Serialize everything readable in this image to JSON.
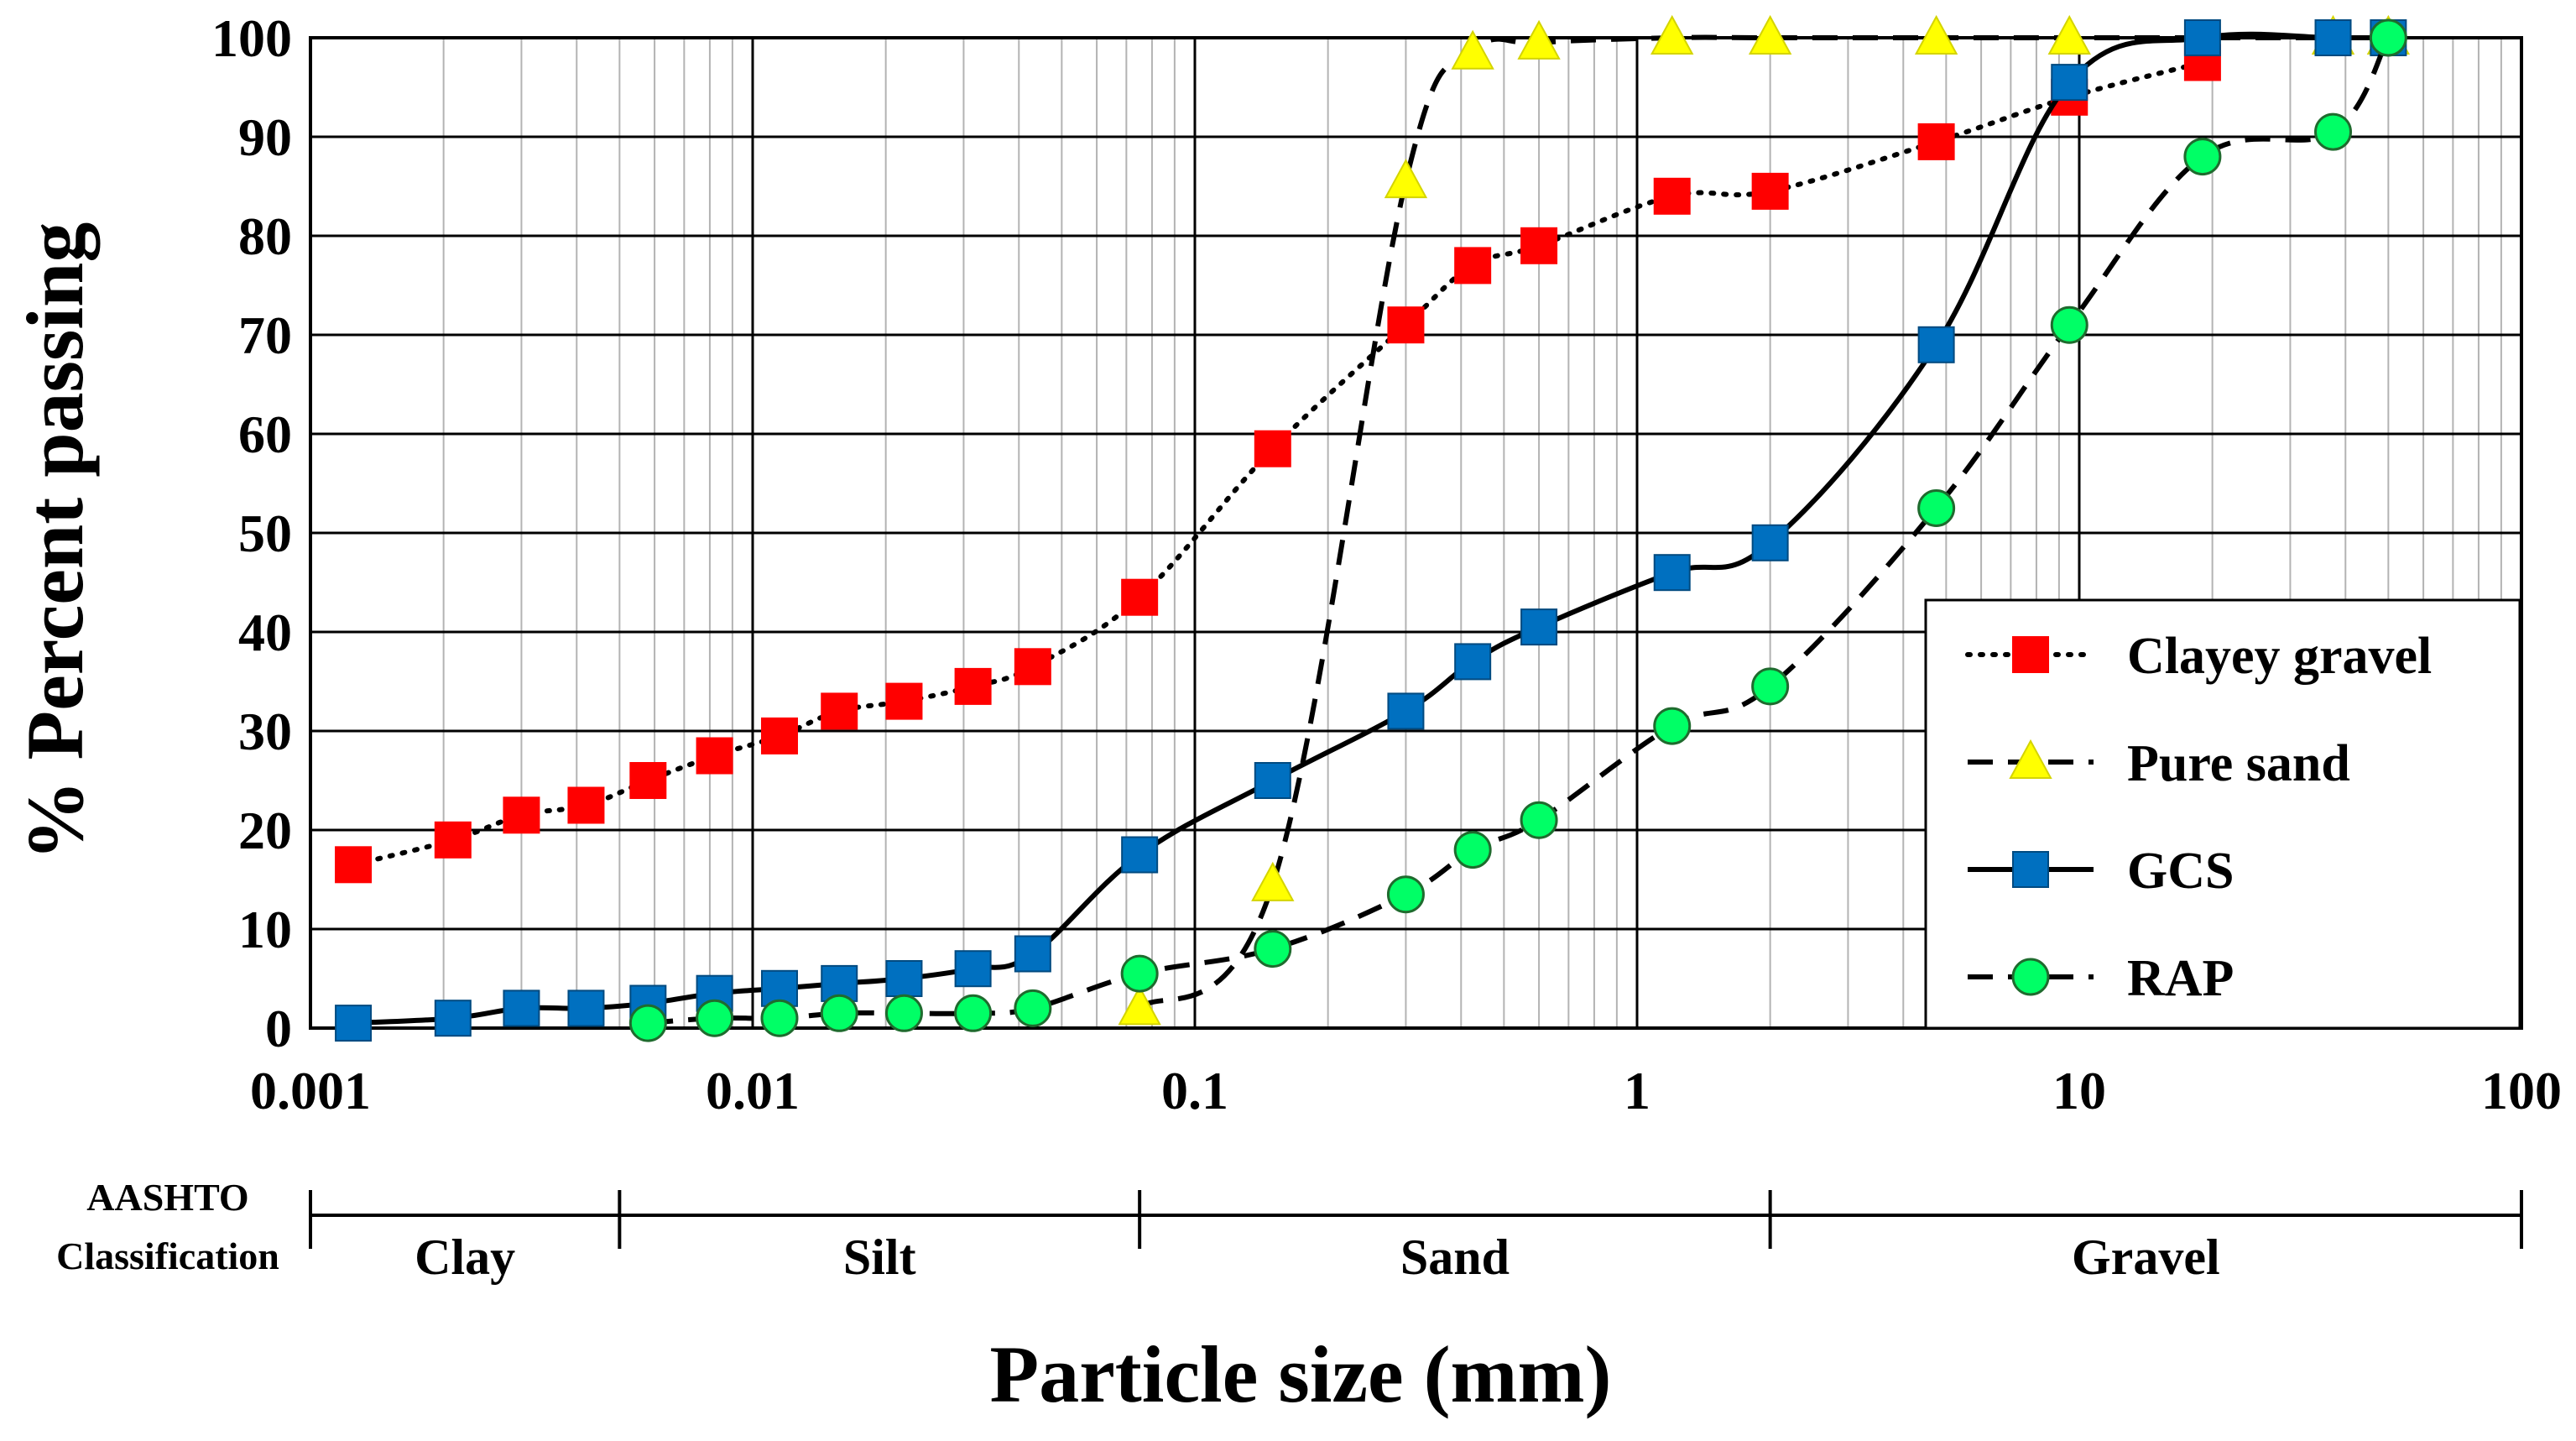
{
  "chart_data": {
    "type": "line",
    "xscale": "log",
    "xlim": [
      0.001,
      100
    ],
    "ylim": [
      0,
      100
    ],
    "xlabel": "Particle size (mm)",
    "ylabel": "% Percent passing",
    "x_tick_labels": [
      "0.001",
      "0.01",
      "0.1",
      "1",
      "10",
      "100"
    ],
    "y_tick_labels": [
      "0",
      "10",
      "20",
      "30",
      "40",
      "50",
      "60",
      "70",
      "80",
      "90",
      "100"
    ],
    "grid": true,
    "legend_position": "bottom-right",
    "series": [
      {
        "name": "Clayey gravel",
        "line_style": "dotted",
        "marker": "square",
        "color": "#ff0000",
        "x": [
          0.00125,
          0.0021,
          0.003,
          0.0042,
          0.0058,
          0.0082,
          0.0115,
          0.0157,
          0.022,
          0.0315,
          0.043,
          0.075,
          0.15,
          0.3,
          0.425,
          0.6,
          1.2,
          2.0,
          4.75,
          9.5,
          19.0
        ],
        "y": [
          16.5,
          19,
          21.5,
          22.5,
          25,
          27.5,
          29.5,
          32,
          33,
          34.5,
          36.5,
          43.5,
          58.5,
          71,
          77,
          79,
          84,
          84.5,
          89.5,
          94,
          97.5
        ]
      },
      {
        "name": "Pure sand",
        "line_style": "dashed",
        "marker": "triangle",
        "color": "#ffff00",
        "x": [
          0.075,
          0.15,
          0.3,
          0.425,
          0.6,
          1.2,
          2.0,
          4.75,
          9.5,
          37.5,
          50.0
        ],
        "y": [
          2,
          14.5,
          85.5,
          98.5,
          99.5,
          100,
          100,
          100,
          100,
          100,
          100
        ]
      },
      {
        "name": "GCS",
        "line_style": "solid",
        "marker": "square",
        "color": "#0070c0",
        "x": [
          0.00125,
          0.0021,
          0.003,
          0.0042,
          0.0058,
          0.0082,
          0.0115,
          0.0157,
          0.022,
          0.0315,
          0.043,
          0.075,
          0.15,
          0.3,
          0.425,
          0.6,
          1.2,
          2.0,
          4.75,
          9.5,
          19.0,
          37.5,
          50.0
        ],
        "y": [
          0.5,
          1,
          2,
          2,
          2.5,
          3.5,
          4,
          4.5,
          5,
          6,
          7.5,
          17.5,
          25,
          32,
          37,
          40.5,
          46,
          49,
          69,
          95.5,
          100,
          100,
          100
        ]
      },
      {
        "name": "RAP",
        "line_style": "dashed",
        "marker": "circle",
        "color": "#00ff66",
        "x": [
          0.0058,
          0.0082,
          0.0115,
          0.0157,
          0.022,
          0.0315,
          0.043,
          0.075,
          0.15,
          0.3,
          0.425,
          0.6,
          1.2,
          2.0,
          4.75,
          9.5,
          19.0,
          37.5,
          50.0
        ],
        "y": [
          0.5,
          1,
          1,
          1.5,
          1.5,
          1.5,
          2,
          5.5,
          8,
          13.5,
          18,
          21,
          30.5,
          34.5,
          52.5,
          71,
          88,
          90.5,
          100
        ]
      }
    ],
    "classification": {
      "title_line1": "AASHTO",
      "title_line2": "Classification",
      "boundaries_mm": [
        0.001,
        0.005,
        0.075,
        2.0,
        100
      ],
      "zones": [
        "Clay",
        "Silt",
        "Sand",
        "Gravel"
      ]
    }
  }
}
